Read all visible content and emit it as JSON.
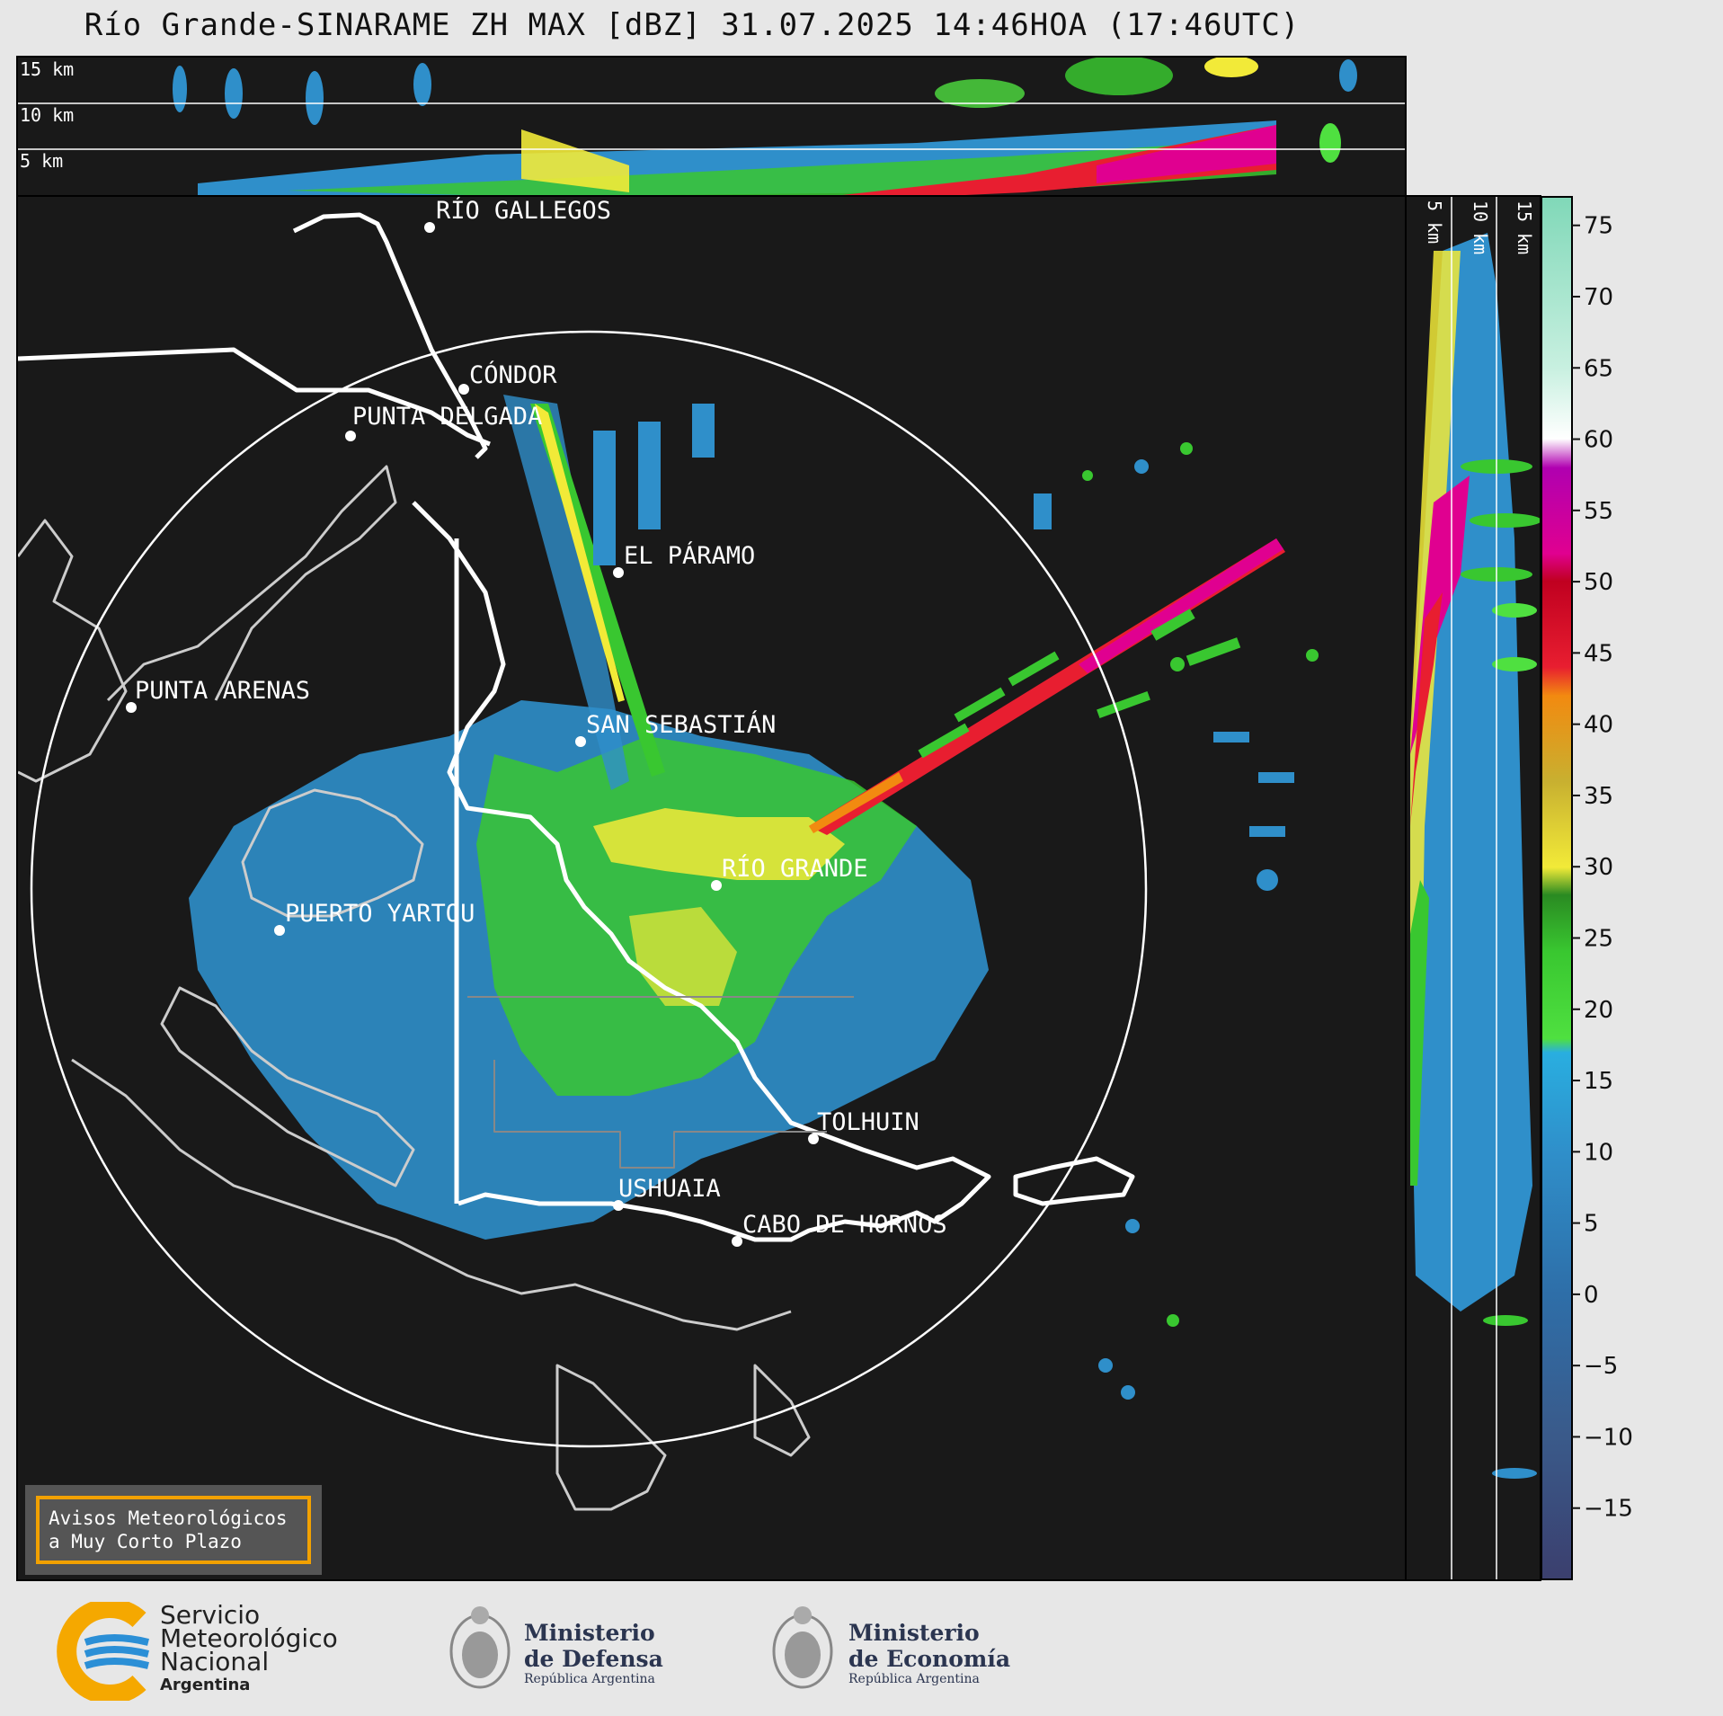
{
  "title": "Río Grande-SINARAME ZH MAX [dBZ] 31.07.2025 14:46HOA (17:46UTC)",
  "top_panel": {
    "height_labels": [
      "15 km",
      "10 km",
      "5 km"
    ]
  },
  "side_panel": {
    "height_labels": [
      "5 km",
      "10 km",
      "15 km"
    ]
  },
  "cities": [
    {
      "name": "RÍO GALLEGOS"
    },
    {
      "name": "CÓNDOR"
    },
    {
      "name": "PUNTA DELGADA"
    },
    {
      "name": "EL PÁRAMO"
    },
    {
      "name": "PUNTA ARENAS"
    },
    {
      "name": "SAN SEBASTIÁN"
    },
    {
      "name": "RÍO GRANDE"
    },
    {
      "name": "PUERTO YARTOU"
    },
    {
      "name": "TOLHUIN"
    },
    {
      "name": "USHUAIA"
    },
    {
      "name": "CABO DE HORNOS"
    }
  ],
  "colorbar": {
    "label": "dBZ",
    "ticks": [
      "75",
      "70",
      "65",
      "60",
      "55",
      "50",
      "45",
      "40",
      "35",
      "30",
      "25",
      "20",
      "15",
      "10",
      "5",
      "0",
      "−5",
      "−10",
      "−15"
    ],
    "range": [
      -20,
      77
    ],
    "colors": {
      "c_-20": "#3b3f6e",
      "c_-10": "#3a5a8a",
      "c_0": "#2e6ea8",
      "c_10": "#2f8fca",
      "c_17": "#29aee0",
      "c_18": "#4fe040",
      "c_24": "#39c730",
      "c_28": "#2a8a22",
      "c_30": "#f2ea38",
      "c_36": "#c8b030",
      "c_42": "#f28a10",
      "c_44": "#e81e30",
      "c_50": "#c00020",
      "c_52": "#e00090",
      "c_56": "#b000b0",
      "c_60": "#ffffff",
      "c_65": "#c8f0e0",
      "c_77": "#80d8b8"
    }
  },
  "warning_box": {
    "line1": "Avisos Meteorológicos",
    "line2": "a Muy Corto Plazo"
  },
  "logos": {
    "smn": [
      "Servicio",
      "Meteorológico",
      "Nacional",
      "Argentina"
    ],
    "defensa": [
      "Ministerio",
      "de Defensa",
      "República Argentina"
    ],
    "economia": [
      "Ministerio",
      "de Economía",
      "República Argentina"
    ]
  }
}
